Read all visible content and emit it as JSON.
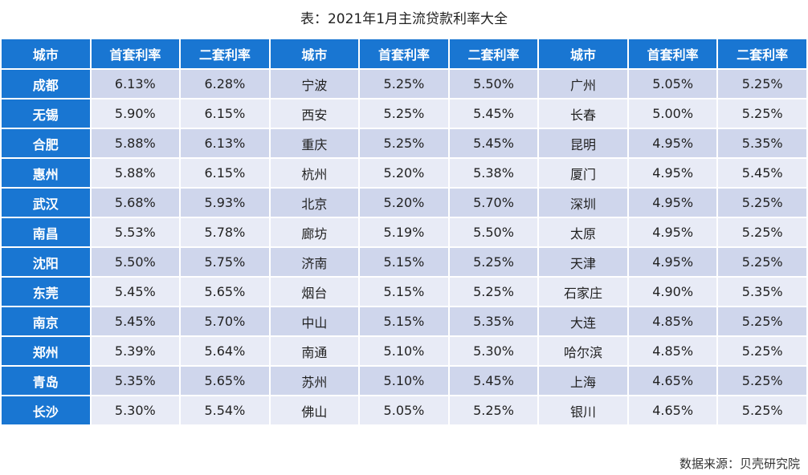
{
  "title": "表：2021年1月主流贷款利率大全",
  "headers": [
    "城市",
    "首套利率",
    "二套利率",
    "城市",
    "首套利率",
    "二套利率",
    "城市",
    "首套利率",
    "二套利率"
  ],
  "rows": [
    [
      "成都",
      "6.13%",
      "6.28%",
      "宁波",
      "5.25%",
      "5.50%",
      "广州",
      "5.05%",
      "5.25%"
    ],
    [
      "无锡",
      "5.90%",
      "6.15%",
      "西安",
      "5.25%",
      "5.45%",
      "长春",
      "5.00%",
      "5.25%"
    ],
    [
      "合肥",
      "5.88%",
      "6.13%",
      "重庆",
      "5.25%",
      "5.45%",
      "昆明",
      "4.95%",
      "5.35%"
    ],
    [
      "惠州",
      "5.88%",
      "6.15%",
      "杭州",
      "5.20%",
      "5.38%",
      "厦门",
      "4.95%",
      "5.45%"
    ],
    [
      "武汉",
      "5.68%",
      "5.93%",
      "北京",
      "5.20%",
      "5.70%",
      "深圳",
      "4.95%",
      "5.25%"
    ],
    [
      "南昌",
      "5.53%",
      "5.78%",
      "廊坊",
      "5.19%",
      "5.50%",
      "太原",
      "4.95%",
      "5.25%"
    ],
    [
      "沈阳",
      "5.50%",
      "5.75%",
      "济南",
      "5.15%",
      "5.25%",
      "天津",
      "4.95%",
      "5.25%"
    ],
    [
      "东莞",
      "5.45%",
      "5.65%",
      "烟台",
      "5.15%",
      "5.25%",
      "石家庄",
      "4.90%",
      "5.35%"
    ],
    [
      "南京",
      "5.45%",
      "5.70%",
      "中山",
      "5.15%",
      "5.35%",
      "大连",
      "4.85%",
      "5.25%"
    ],
    [
      "郑州",
      "5.39%",
      "5.64%",
      "南通",
      "5.10%",
      "5.30%",
      "哈尔滨",
      "4.85%",
      "5.25%"
    ],
    [
      "青岛",
      "5.35%",
      "5.65%",
      "苏州",
      "5.10%",
      "5.45%",
      "上海",
      "4.65%",
      "5.25%"
    ],
    [
      "长沙",
      "5.30%",
      "5.54%",
      "佛山",
      "5.05%",
      "5.25%",
      "银川",
      "4.65%",
      "5.25%"
    ]
  ],
  "source": "数据来源：贝壳研究院",
  "colors": {
    "header_bg": "#1976d2",
    "row_dark": "#cfd6ec",
    "row_light": "#e8ebf6"
  }
}
